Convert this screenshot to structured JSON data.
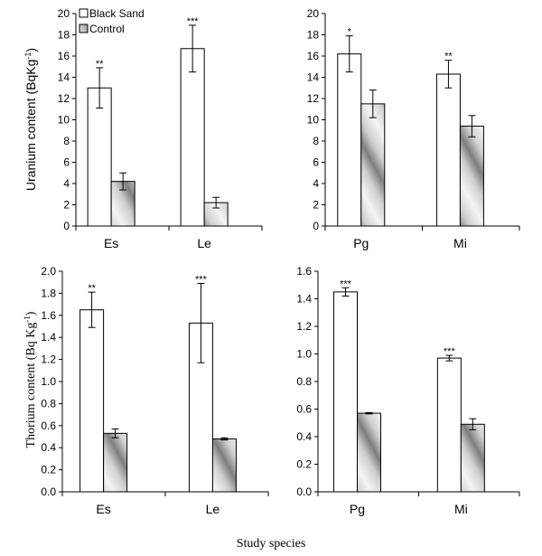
{
  "x_label": "Study species",
  "legend": {
    "black_sand": "Black Sand",
    "control": "Control"
  },
  "colors": {
    "black_sand_fill": "#ffffff",
    "axis": "#000000",
    "control_light": "#f2f2f2",
    "control_dark": "#8a8a8a"
  },
  "chart_data": [
    {
      "type": "bar",
      "ylabel": "Uranium content (BqKg",
      "ylabel_sup": "-1",
      "ylabel_end": ")",
      "ylim": [
        0,
        20
      ],
      "yticks": [
        "0",
        "2",
        "4",
        "6",
        "8",
        "10",
        "12",
        "14",
        "16",
        "18",
        "20"
      ],
      "categories": [
        "Es",
        "Le"
      ],
      "series": [
        {
          "name": "Black Sand",
          "values": [
            13.0,
            16.7
          ],
          "errors": [
            1.9,
            2.2
          ],
          "sig": [
            "**",
            "***"
          ]
        },
        {
          "name": "Control",
          "values": [
            4.2,
            2.2
          ],
          "errors": [
            0.8,
            0.5
          ],
          "sig": [
            "",
            ""
          ]
        }
      ]
    },
    {
      "type": "bar",
      "ylim": [
        0,
        20
      ],
      "yticks": [
        "0",
        "2",
        "4",
        "6",
        "8",
        "10",
        "12",
        "14",
        "16",
        "18",
        "20"
      ],
      "categories": [
        "Pg",
        "Mi"
      ],
      "series": [
        {
          "name": "Black Sand",
          "values": [
            16.2,
            14.3
          ],
          "errors": [
            1.7,
            1.3
          ],
          "sig": [
            "*",
            "**"
          ]
        },
        {
          "name": "Control",
          "values": [
            11.5,
            9.4
          ],
          "errors": [
            1.3,
            1.0
          ],
          "sig": [
            "",
            ""
          ]
        }
      ]
    },
    {
      "type": "bar",
      "ylabel": "Thorium content (Bq Kg",
      "ylabel_sup": "-1",
      "ylabel_end": ")",
      "ylim": [
        0,
        2.0
      ],
      "yticks": [
        "0.0",
        "0.2",
        "0.4",
        "0.6",
        "0.8",
        "1.0",
        "1.2",
        "1.4",
        "1.6",
        "1.8",
        "2.0"
      ],
      "categories": [
        "Es",
        "Le"
      ],
      "series": [
        {
          "name": "Black Sand",
          "values": [
            1.65,
            1.53
          ],
          "errors": [
            0.16,
            0.36
          ],
          "sig": [
            "**",
            "***"
          ]
        },
        {
          "name": "Control",
          "values": [
            0.53,
            0.48
          ],
          "errors": [
            0.04,
            0.01
          ],
          "sig": [
            "",
            ""
          ]
        }
      ]
    },
    {
      "type": "bar",
      "ylim": [
        0,
        1.6
      ],
      "yticks": [
        "0.0",
        "0.2",
        "0.4",
        "0.6",
        "0.8",
        "1.0",
        "1.2",
        "1.4",
        "1.6"
      ],
      "categories": [
        "Pg",
        "Mi"
      ],
      "series": [
        {
          "name": "Black Sand",
          "values": [
            1.45,
            0.97
          ],
          "errors": [
            0.03,
            0.02
          ],
          "sig": [
            "***",
            "***"
          ]
        },
        {
          "name": "Control",
          "values": [
            0.57,
            0.49
          ],
          "errors": [
            0.005,
            0.04
          ],
          "sig": [
            "",
            ""
          ]
        }
      ]
    }
  ]
}
